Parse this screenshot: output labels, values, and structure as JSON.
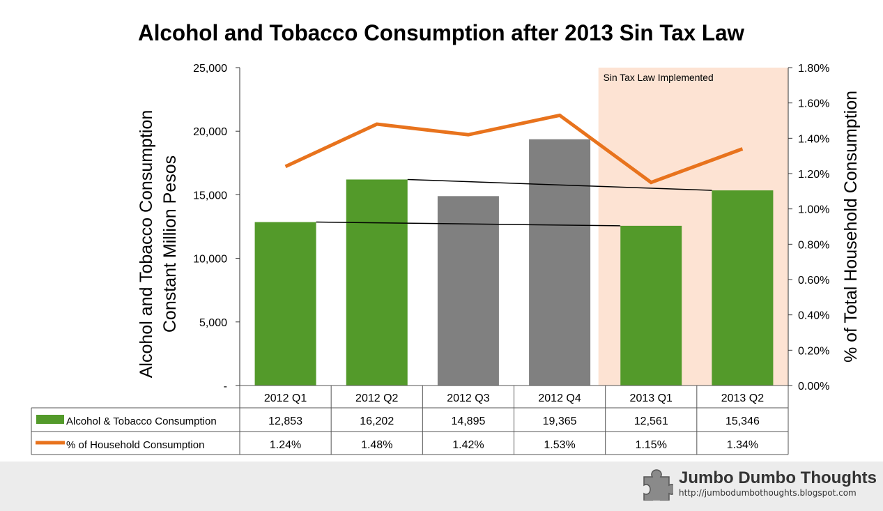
{
  "chart_data": {
    "type": "bar",
    "title": "Alcohol and Tobacco Consumption after 2013 Sin Tax Law",
    "ylabel_left_line1": "Alcohol and Tobacco Consumption",
    "ylabel_left_line2": "Constant Million Pesos",
    "ylabel_right": "% of Total Household Consumption",
    "categories": [
      "2012 Q1",
      "2012 Q2",
      "2012 Q3",
      "2012 Q4",
      "2013 Q1",
      "2013 Q2"
    ],
    "left_ticks": [
      "-",
      "5,000",
      "10,000",
      "15,000",
      "20,000",
      "25,000"
    ],
    "right_ticks": [
      "0.00%",
      "0.20%",
      "0.40%",
      "0.60%",
      "0.80%",
      "1.00%",
      "1.20%",
      "1.40%",
      "1.60%",
      "1.80%"
    ],
    "ylim_left": [
      0,
      25000
    ],
    "ylim_right": [
      0,
      0.018
    ],
    "series": [
      {
        "name": "Alcohol & Tobacco Consumption",
        "kind": "bar",
        "axis": "left",
        "values": [
          12853,
          16202,
          14895,
          19365,
          12561,
          15346
        ],
        "labels": [
          "12,853",
          "16,202",
          "14,895",
          "19,365",
          "12,561",
          "15,346"
        ],
        "bar_colors": [
          "#539a2a",
          "#539a2a",
          "#808080",
          "#808080",
          "#539a2a",
          "#539a2a"
        ],
        "color": "#539a2a"
      },
      {
        "name": "% of Household Consumption",
        "kind": "line",
        "axis": "right",
        "values": [
          0.0124,
          0.0148,
          0.0142,
          0.0153,
          0.0115,
          0.0134
        ],
        "labels": [
          "1.24%",
          "1.48%",
          "1.42%",
          "1.53%",
          "1.15%",
          "1.34%"
        ],
        "color": "#e8731d"
      }
    ],
    "annotation": {
      "text": "Sin Tax Law Implemented",
      "from_category": "2013 Q1",
      "shade_color": "#fde3d3"
    },
    "comparison_lines": [
      [
        "2012 Q1",
        "2013 Q1"
      ],
      [
        "2012 Q2",
        "2013 Q2"
      ]
    ],
    "grid": false,
    "legend": "data-table"
  },
  "brand": {
    "name": "Jumbo Dumbo Thoughts",
    "url": "http://jumbodumbothoughts.blogspot.com",
    "icon": "puzzle-piece-icon"
  }
}
